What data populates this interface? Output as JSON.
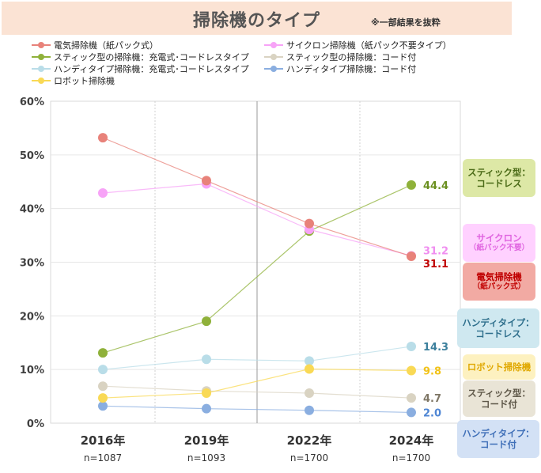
{
  "title": "掃除機のタイプ",
  "note": "※一部結果を抜粋",
  "colors": {
    "denki": "#e8827a",
    "cyclone": "#f7a3f7",
    "stick_cordless": "#8fb13a",
    "stick_cord": "#d9d3c2",
    "handy_cordless": "#b9dde8",
    "handy_cord": "#8aaee0",
    "robot": "#f9d955"
  },
  "legend": [
    {
      "key": "denki",
      "label": "電気掃除機（紙パック式）"
    },
    {
      "key": "cyclone",
      "label": "サイクロン掃除機（紙パック不要タイプ）"
    },
    {
      "key": "stick_cordless",
      "label": "スティック型の掃除機：充電式･コードレスタイプ"
    },
    {
      "key": "stick_cord",
      "label": "スティック型の掃除機：コード付"
    },
    {
      "key": "handy_cordless",
      "label": "ハンディタイプ掃除機：充電式･コードレスタイプ"
    },
    {
      "key": "handy_cord",
      "label": "ハンディタイプ掃除機：コード付"
    },
    {
      "key": "robot",
      "label": "ロボット掃除機"
    }
  ],
  "chart_data": {
    "type": "line",
    "categories": [
      "2016年",
      "2019年",
      "2022年",
      "2024年"
    ],
    "sample_sizes": [
      "n=1087",
      "n=1093",
      "n=1700",
      "n=1700"
    ],
    "yticks": [
      "0%",
      "10%",
      "20%",
      "30%",
      "40%",
      "50%",
      "60%"
    ],
    "ylim": [
      0,
      60
    ],
    "series": [
      {
        "key": "denki",
        "name": "電気掃除機（紙パック式）",
        "values": [
          53.2,
          45.2,
          37.2,
          31.1
        ],
        "end_label": "31.1",
        "label_color": "#c00000"
      },
      {
        "key": "cyclone",
        "name": "サイクロン掃除機（紙パック不要タイプ）",
        "values": [
          42.9,
          44.6,
          36.1,
          31.2
        ],
        "end_label": "31.2",
        "label_color": "#f08ef0"
      },
      {
        "key": "stick_cordless",
        "name": "スティック型の掃除機：充電式･コードレスタイプ",
        "values": [
          13.1,
          19.0,
          35.8,
          44.4
        ],
        "end_label": "44.4",
        "label_color": "#6a8f1f"
      },
      {
        "key": "stick_cord",
        "name": "スティック型の掃除機：コード付",
        "values": [
          6.9,
          6.0,
          5.6,
          4.7
        ],
        "end_label": "4.7",
        "label_color": "#7f7766"
      },
      {
        "key": "handy_cordless",
        "name": "ハンディタイプ掃除機：充電式･コードレスタイプ",
        "values": [
          10.0,
          11.9,
          11.6,
          14.3
        ],
        "end_label": "14.3",
        "label_color": "#3b7f9c"
      },
      {
        "key": "handy_cord",
        "name": "ハンディタイプ掃除機：コード付",
        "values": [
          3.2,
          2.7,
          2.4,
          2.0
        ],
        "end_label": "2.0",
        "label_color": "#4f86d4"
      },
      {
        "key": "robot",
        "name": "ロボット掃除機",
        "values": [
          4.7,
          5.6,
          10.1,
          9.8
        ],
        "end_label": "9.8",
        "label_color": "#f2c31a"
      }
    ]
  },
  "callouts": [
    {
      "key": "stick_cordless",
      "line1": "スティック型：",
      "line2": "コードレス",
      "bg": "#dde8a6",
      "fg": "#4a6a16"
    },
    {
      "key": "cyclone",
      "line1": "サイクロン",
      "line2": "（紙パック不要）",
      "bg": "#ffd1ff",
      "fg": "#e064e0"
    },
    {
      "key": "denki",
      "line1": "電気掃除機",
      "line2": "（紙パック式）",
      "bg": "#f2aaa3",
      "fg": "#c00000"
    },
    {
      "key": "handy_cordless",
      "line1": "ハンディタイプ：",
      "line2": "コードレス",
      "bg": "#cfe8f0",
      "fg": "#2e6f8c"
    },
    {
      "key": "robot",
      "line1": "ロボット掃除機",
      "line2": "",
      "bg": "#fdf1c0",
      "fg": "#e0a800"
    },
    {
      "key": "stick_cord",
      "line1": "スティック型：",
      "line2": "コード付",
      "bg": "#e9e4d6",
      "fg": "#5e5748"
    },
    {
      "key": "handy_cord",
      "line1": "ハンディタイプ：",
      "line2": "コード付",
      "bg": "#d3e1f5",
      "fg": "#3f6fb8"
    }
  ]
}
